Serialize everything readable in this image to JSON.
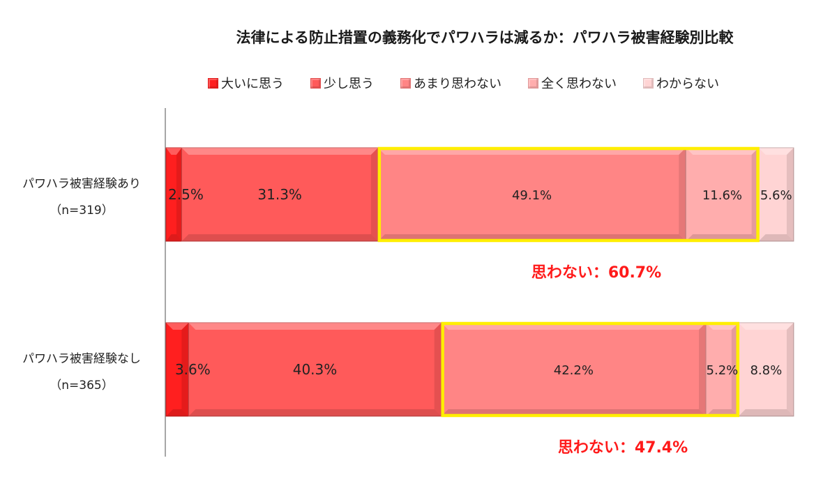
{
  "chart_data": {
    "type": "bar",
    "orientation": "horizontal",
    "stacked": true,
    "percent_stacked": true,
    "title": "法律による防止措置の義務化でパワハラは減るか：パワハラ被害経験別比較",
    "legend_position": "top",
    "categories": [
      [
        "パワハラ被害経験あり",
        "（n=319）"
      ],
      [
        "パワハラ被害経験なし",
        "（n=365）"
      ]
    ],
    "series": [
      {
        "name": "大いに思う",
        "values": [
          2.5,
          3.6
        ],
        "labels": [
          "2.5%",
          "3.6%"
        ],
        "color": "#ff1f1f"
      },
      {
        "name": "少し思う",
        "values": [
          31.3,
          40.3
        ],
        "labels": [
          "31.3%",
          "40.3%"
        ],
        "color": "#ff5a5a"
      },
      {
        "name": "あまり思わない",
        "values": [
          49.1,
          42.2
        ],
        "labels": [
          "49.1%",
          "42.2%"
        ],
        "color": "#ff8585"
      },
      {
        "name": "全く思わない",
        "values": [
          11.6,
          5.2
        ],
        "labels": [
          "11.6%",
          "5.2%"
        ],
        "color": "#ffadad"
      },
      {
        "name": "わからない",
        "values": [
          5.6,
          8.8
        ],
        "labels": [
          "5.6%",
          "8.8%"
        ],
        "color": "#ffd4d4"
      }
    ],
    "highlight": {
      "series_range": [
        2,
        3
      ],
      "color": "#ffee00",
      "callouts": [
        "思わない：60.7%",
        "思わない：47.4%"
      ]
    }
  }
}
